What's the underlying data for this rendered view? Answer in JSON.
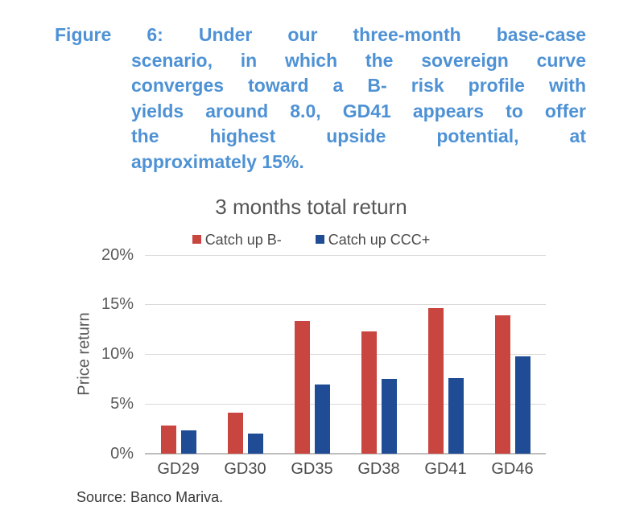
{
  "caption": {
    "color": "#4E92D5",
    "full_text": "Figure 6: Under our three-month base-case scenario, in which the sovereign curve converges toward a B- risk profile with yields around 8.0, GD41 appears to offer the highest upside potential, at approximately 15%.",
    "lines": [
      "Figure 6: Under our three-month base-case",
      "scenario, in which the sovereign curve",
      "converges toward a B- risk profile with",
      "yields around 8.0, GD41 appears to offer",
      "the highest upside potential, at",
      "approximately 15%."
    ]
  },
  "chart_data": {
    "type": "bar",
    "title": "3 months total return",
    "xlabel": "",
    "ylabel": "Price return",
    "unit": "%",
    "categories": [
      "GD29",
      "GD30",
      "GD35",
      "GD38",
      "GD41",
      "GD46"
    ],
    "series": [
      {
        "name": "Catch up B-",
        "color": "#C9453F",
        "values": [
          2.8,
          4.1,
          13.3,
          12.3,
          14.6,
          13.9
        ]
      },
      {
        "name": "Catch up CCC+",
        "color": "#1F4C94",
        "values": [
          2.3,
          2.0,
          6.9,
          7.5,
          7.6,
          9.8
        ]
      }
    ],
    "ylim": [
      0,
      20
    ],
    "yticks": [
      "0%",
      "5%",
      "10%",
      "15%",
      "20%"
    ],
    "grid": true,
    "legend_position": "top"
  },
  "source": "Source: Banco Mariva."
}
